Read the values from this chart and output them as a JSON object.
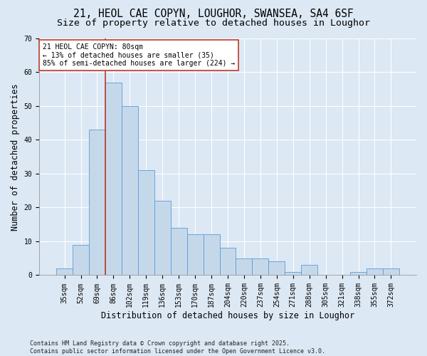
{
  "title1": "21, HEOL CAE COPYN, LOUGHOR, SWANSEA, SA4 6SF",
  "title2": "Size of property relative to detached houses in Loughor",
  "xlabel": "Distribution of detached houses by size in Loughor",
  "ylabel": "Number of detached properties",
  "categories": [
    "35sqm",
    "52sqm",
    "69sqm",
    "86sqm",
    "102sqm",
    "119sqm",
    "136sqm",
    "153sqm",
    "170sqm",
    "187sqm",
    "204sqm",
    "220sqm",
    "237sqm",
    "254sqm",
    "271sqm",
    "288sqm",
    "305sqm",
    "321sqm",
    "338sqm",
    "355sqm",
    "372sqm"
  ],
  "values": [
    2,
    9,
    43,
    57,
    50,
    31,
    22,
    14,
    12,
    12,
    8,
    5,
    5,
    4,
    1,
    3,
    0,
    0,
    1,
    2,
    2
  ],
  "bar_color": "#c5d8ea",
  "bar_edge_color": "#5b9bd5",
  "bg_color": "#dce8f4",
  "grid_color": "#ffffff",
  "vline_x": 2.5,
  "vline_color": "#c0392b",
  "annotation_text": "21 HEOL CAE COPYN: 80sqm\n← 13% of detached houses are smaller (35)\n85% of semi-detached houses are larger (224) →",
  "annotation_box_color": "#ffffff",
  "annotation_box_edge": "#c0392b",
  "ylim": [
    0,
    70
  ],
  "yticks": [
    0,
    10,
    20,
    30,
    40,
    50,
    60,
    70
  ],
  "footer": "Contains HM Land Registry data © Crown copyright and database right 2025.\nContains public sector information licensed under the Open Government Licence v3.0.",
  "title_fontsize": 10.5,
  "subtitle_fontsize": 9.5,
  "axis_label_fontsize": 8.5,
  "tick_fontsize": 7,
  "annot_fontsize": 7,
  "footer_fontsize": 6
}
